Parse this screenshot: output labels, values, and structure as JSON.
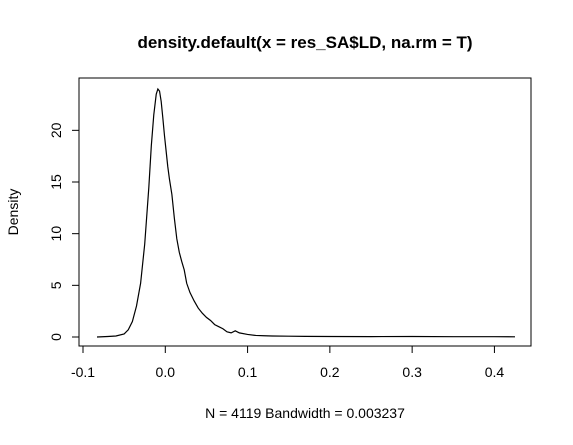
{
  "chart_data": {
    "type": "line",
    "title": "density.default(x = res_SA$LD, na.rm = T)",
    "xlabel": "N = 4119   Bandwidth = 0.003237",
    "ylabel": "Density",
    "xlim": [
      -0.1,
      0.45
    ],
    "ylim": [
      0,
      24
    ],
    "x_ticks": [
      -0.1,
      0.0,
      0.1,
      0.2,
      0.3,
      0.4
    ],
    "x_tick_labels": [
      "-0.1",
      "0.0",
      "0.1",
      "0.2",
      "0.3",
      "0.4"
    ],
    "y_ticks": [
      0,
      5,
      10,
      15,
      20
    ],
    "y_tick_labels": [
      "0",
      "5",
      "10",
      "15",
      "20"
    ],
    "grid": false,
    "legend": "none",
    "line_color": "#000000",
    "series": [
      {
        "x": [
          -0.083,
          -0.07,
          -0.06,
          -0.05,
          -0.045,
          -0.04,
          -0.035,
          -0.03,
          -0.025,
          -0.02,
          -0.017,
          -0.014,
          -0.011,
          -0.009,
          -0.007,
          -0.005,
          -0.003,
          -0.001,
          0.001,
          0.003,
          0.005,
          0.008,
          0.011,
          0.014,
          0.017,
          0.02,
          0.023,
          0.026,
          0.03,
          0.035,
          0.04,
          0.045,
          0.05,
          0.055,
          0.06,
          0.065,
          0.07,
          0.075,
          0.08,
          0.085,
          0.09,
          0.1,
          0.11,
          0.12,
          0.13,
          0.15,
          0.17,
          0.2,
          0.25,
          0.3,
          0.35,
          0.4,
          0.425
        ],
        "y": [
          0.0,
          0.05,
          0.1,
          0.3,
          0.7,
          1.5,
          3.0,
          5.2,
          9.0,
          14.5,
          18.5,
          21.5,
          23.5,
          24.0,
          23.8,
          22.8,
          21.2,
          19.5,
          18.0,
          16.5,
          15.3,
          13.8,
          11.5,
          9.5,
          8.2,
          7.3,
          6.5,
          5.2,
          4.3,
          3.5,
          2.8,
          2.3,
          1.9,
          1.6,
          1.2,
          1.0,
          0.8,
          0.5,
          0.4,
          0.6,
          0.4,
          0.25,
          0.15,
          0.12,
          0.1,
          0.08,
          0.06,
          0.05,
          0.04,
          0.05,
          0.03,
          0.03,
          0.02
        ]
      }
    ]
  }
}
